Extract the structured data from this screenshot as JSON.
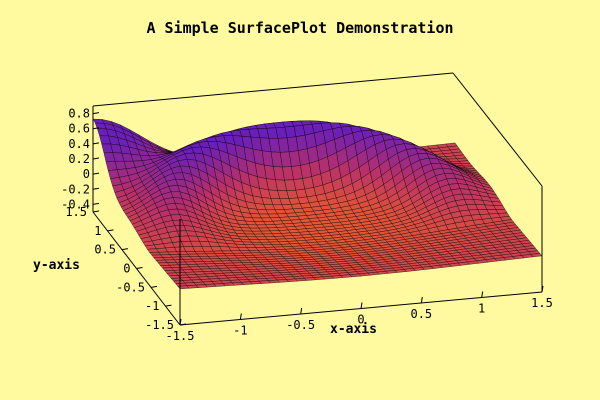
{
  "chart_data": {
    "type": "surface",
    "title": "A Simple SurfacePlot Demonstration",
    "xlabel": "x-axis",
    "ylabel": "y-axis",
    "zlabel": "",
    "xlim": [
      -1.5,
      1.5
    ],
    "ylim": [
      -1.5,
      1.5
    ],
    "zlim": [
      -0.5,
      0.9
    ],
    "x_ticks": [
      "-1.5",
      "-1",
      "-0.5",
      "0",
      "0.5",
      "1",
      "1.5"
    ],
    "y_ticks": [
      "-1.5",
      "-1",
      "-0.5",
      "0",
      "0.5",
      "1",
      "1.5"
    ],
    "z_ticks": [
      "-0.4",
      "-0.2",
      "0",
      "0.2",
      "0.4",
      "0.6",
      "0.8"
    ],
    "grid_points_per_axis": 41,
    "colormap": [
      "#e85a30",
      "#b8306a",
      "#6a1fb8"
    ],
    "surface_values": {
      "corner_x-1.5_y1.5": 0.65,
      "corner_x1.5_y1.5": 0.0,
      "corner_x-1.5_y-1.5": 0.0,
      "corner_x1.5_y-1.5": 0.0,
      "center": -0.2,
      "ridge_max": 0.8
    },
    "background_color": "#fffaa0",
    "grid": false
  }
}
